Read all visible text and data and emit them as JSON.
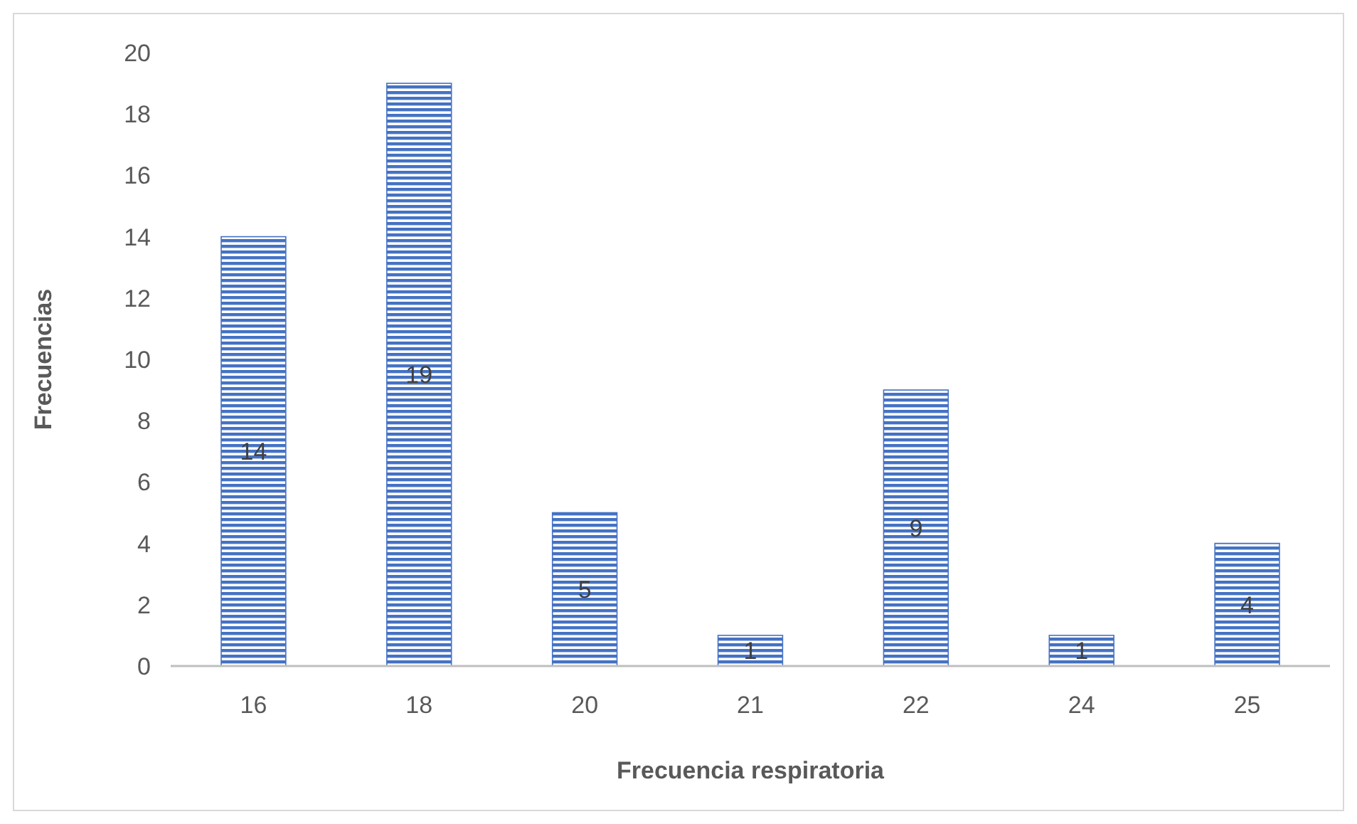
{
  "chart_data": {
    "type": "bar",
    "xlabel": "Frecuencia respiratoria",
    "ylabel": "Frecuencias",
    "categories": [
      "16",
      "18",
      "20",
      "21",
      "22",
      "24",
      "25"
    ],
    "values": [
      14,
      19,
      5,
      1,
      9,
      1,
      4
    ],
    "color": "#4472c4",
    "ylim": [
      0,
      20
    ],
    "yticks": [
      0,
      2,
      4,
      6,
      8,
      10,
      12,
      14,
      16,
      18,
      20
    ],
    "data_labels": true
  }
}
